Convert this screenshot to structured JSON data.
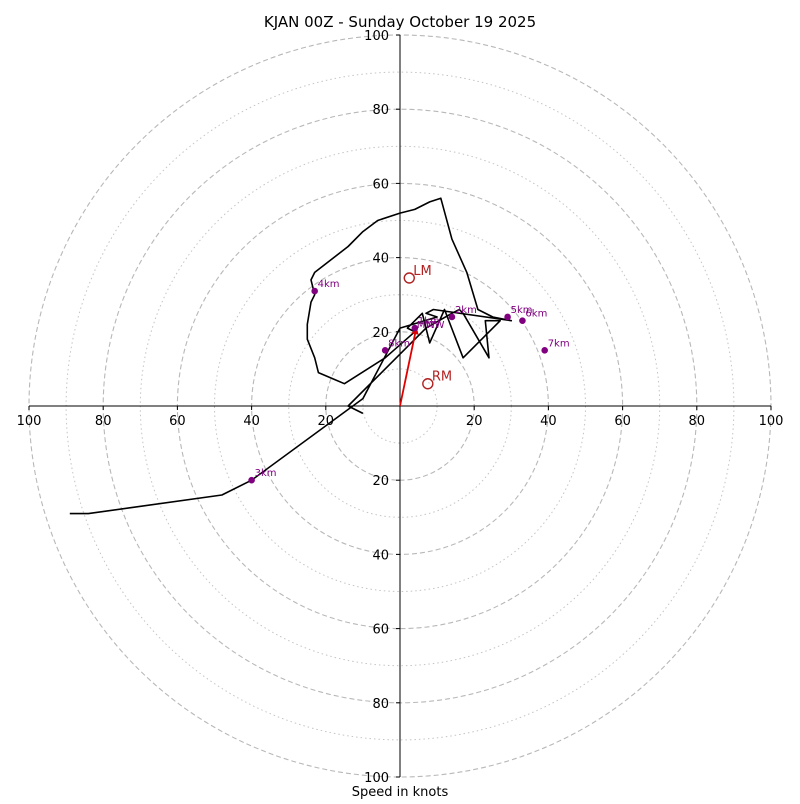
{
  "chart_data": {
    "type": "line",
    "title": "KJAN 00Z - Sunday October 19 2025",
    "xlabel": "Speed in knots",
    "ylabel": "",
    "xlim": [
      -100,
      100
    ],
    "ylim": [
      -100,
      100
    ],
    "rings_dashed": [
      20,
      40,
      60,
      80,
      100
    ],
    "rings_dotted": [
      10,
      30,
      50,
      70,
      90
    ],
    "x_tick_labels": [
      "100",
      "80",
      "60",
      "40",
      "20",
      "20",
      "40",
      "60",
      "80",
      "100"
    ],
    "x_tick_values": [
      -100,
      -80,
      -60,
      -40,
      -20,
      20,
      40,
      60,
      80,
      100
    ],
    "y_tick_labels": [
      "100",
      "80",
      "60",
      "40",
      "20",
      "20",
      "40",
      "60",
      "80",
      "100"
    ],
    "y_tick_values": [
      100,
      80,
      60,
      40,
      20,
      -20,
      -40,
      -60,
      -80,
      -100
    ],
    "hodograph": {
      "color": "#000000",
      "u": [
        -10,
        -14,
        6,
        7,
        14,
        16,
        17,
        24,
        23,
        27,
        17,
        12,
        8,
        6,
        2,
        4,
        -4,
        -15,
        -22,
        -23,
        -25,
        -25,
        -24,
        -23,
        -24,
        -23,
        -14,
        -10,
        -6,
        0,
        4,
        8,
        11,
        14,
        18,
        21,
        25,
        30,
        30,
        9,
        7,
        10,
        0,
        -10,
        -40,
        -48,
        -84,
        -89
      ],
      "v": [
        -2,
        0,
        20,
        21,
        25,
        26,
        25,
        13,
        23,
        23,
        13,
        26,
        17,
        25,
        21,
        20,
        13,
        6,
        9,
        13,
        18,
        22,
        28,
        30,
        34,
        36,
        43,
        47,
        50,
        52,
        53,
        55,
        56,
        45,
        36,
        26,
        24,
        23,
        23,
        26,
        25,
        24,
        21,
        2,
        -20,
        -24,
        -29,
        -29
      ]
    },
    "height_labels": [
      {
        "label": "1km",
        "u": 4,
        "v": 21
      },
      {
        "label": "2km",
        "u": 14,
        "v": 24
      },
      {
        "label": "3km",
        "u": -40,
        "v": -20
      },
      {
        "label": "4km",
        "u": -23,
        "v": 31
      },
      {
        "label": "5km",
        "u": 29,
        "v": 24
      },
      {
        "label": "6km",
        "u": 33,
        "v": 23
      },
      {
        "label": "7km",
        "u": 39,
        "v": 15
      },
      {
        "label": "8km",
        "u": -4,
        "v": 15
      }
    ],
    "storm_motion_vector": {
      "color": "#e00000",
      "u": [
        0,
        4.5
      ],
      "v": [
        0,
        21.5
      ]
    },
    "mean_wind_labels": [
      {
        "label": "MW",
        "u": 4.5,
        "v": 21
      },
      {
        "label": "MW",
        "u": 7,
        "v": 21
      }
    ],
    "storm_markers": [
      {
        "label": "LM",
        "u": 2.5,
        "v": 34.5,
        "color": "#b22222"
      },
      {
        "label": "RM",
        "u": 7.5,
        "v": 6,
        "color": "#b22222"
      }
    ],
    "height_point_color": "#800080",
    "grid": true
  }
}
